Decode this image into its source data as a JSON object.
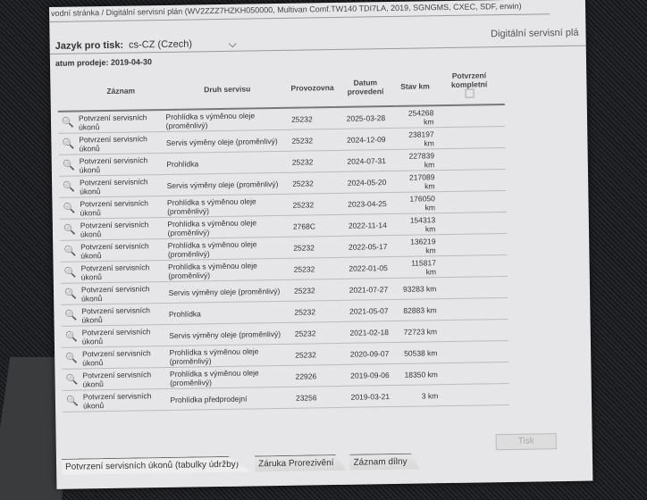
{
  "breadcrumb": "vodní stránka / Digitální servisní plán (WV2ZZZ7HZKH050000, Multivan Comf.TW140 TDI7LA, 2019, SGNGMS, CXEC, SDF, erwin)",
  "language": {
    "label": "Jazyk pro tisk:",
    "value": "cs-CZ (Czech)"
  },
  "right_title": "Digitální servisní plá",
  "sale_date": "atum prodeje: 2019-04-30",
  "columns": [
    "Záznam",
    "Druh servisu",
    "Provozovna",
    "Datum provedení",
    "Stav km",
    "Potvrzení kompletní"
  ],
  "rows": [
    [
      "Potvrzení servisních úkonů",
      "Prohlídka s výměnou oleje (proměnlivý)",
      "25232",
      "2025-03-28",
      "254268 km"
    ],
    [
      "Potvrzení servisních úkonů",
      "Servis výměny oleje (proměnlivý)",
      "25232",
      "2024-12-09",
      "238197 km"
    ],
    [
      "Potvrzení servisních úkonů",
      "Prohlídka",
      "25232",
      "2024-07-31",
      "227839 km"
    ],
    [
      "Potvrzení servisních úkonů",
      "Servis výměny oleje (proměnlivý)",
      "25232",
      "2024-05-20",
      "217089 km"
    ],
    [
      "Potvrzení servisních úkonů",
      "Prohlídka s výměnou oleje (proměnlivý)",
      "25232",
      "2023-04-25",
      "176050 km"
    ],
    [
      "Potvrzení servisních úkonů",
      "Prohlídka s výměnou oleje (proměnlivý)",
      "2768C",
      "2022-11-14",
      "154313 km"
    ],
    [
      "Potvrzení servisních úkonů",
      "Prohlídka s výměnou oleje (proměnlivý)",
      "25232",
      "2022-05-17",
      "136219 km"
    ],
    [
      "Potvrzení servisních úkonů",
      "Prohlídka s výměnou oleje (proměnlivý)",
      "25232",
      "2022-01-05",
      "115817 km"
    ],
    [
      "Potvrzení servisních úkonů",
      "Servis výměny oleje (proměnlivý)",
      "25232",
      "2021-07-27",
      "93283 km"
    ],
    [
      "Potvrzení servisních úkonů",
      "Prohlídka",
      "25232",
      "2021-05-07",
      "82883 km"
    ],
    [
      "Potvrzení servisních úkonů",
      "Servis výměny oleje (proměnlivý)",
      "25232",
      "2021-02-18",
      "72723 km"
    ],
    [
      "Potvrzení servisních úkonů",
      "Prohlídka s výměnou oleje (proměnlivý)",
      "25232",
      "2020-09-07",
      "50538 km"
    ],
    [
      "Potvrzení servisních úkonů",
      "Prohlídka s výměnou oleje (proměnlivý)",
      "22926",
      "2019-09-06",
      "18350 km"
    ],
    [
      "Potvrzení servisních úkonů",
      "Prohlídka předprodejní",
      "23256",
      "2019-03-21",
      "3 km"
    ]
  ],
  "print_button": "Tisk",
  "tabs": [
    "Potvrzení servisních úkonů (tabulky údržby)",
    "Záruka Prorezivění",
    "Záznam dílny"
  ],
  "icons": {
    "row": "magnifier-icon",
    "dropdown": "chevron-down-icon"
  }
}
